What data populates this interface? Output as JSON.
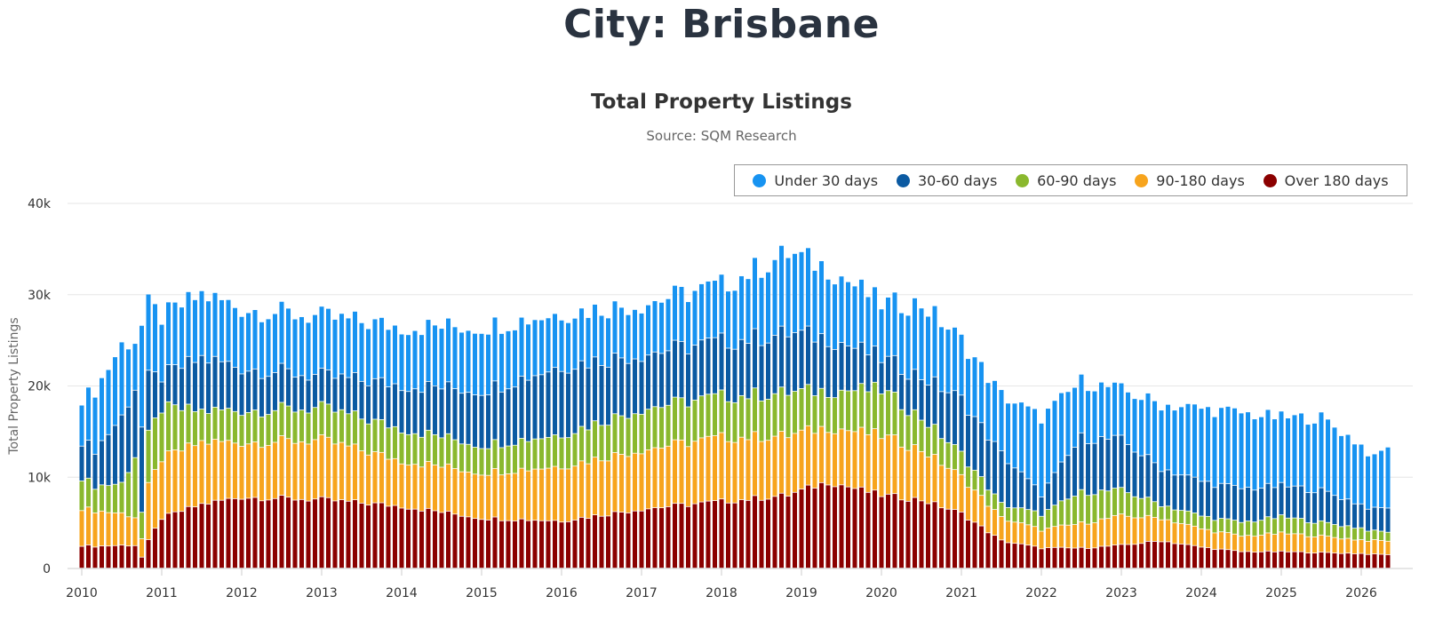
{
  "page": {
    "title": "City: Brisbane"
  },
  "chart_data": {
    "type": "bar",
    "stacked": true,
    "title": "Total Property Listings",
    "subtitle": "Source: SQM Research",
    "ylabel": "Total Property Listings",
    "xlabel": "",
    "ylim": [
      0,
      40000
    ],
    "yticks": [
      {
        "value": 0,
        "label": "0"
      },
      {
        "value": 10000,
        "label": "10k"
      },
      {
        "value": 20000,
        "label": "20k"
      },
      {
        "value": 30000,
        "label": "30k"
      },
      {
        "value": 40000,
        "label": "40k"
      }
    ],
    "xticks": [
      "2010",
      "2011",
      "2012",
      "2013",
      "2014",
      "2015",
      "2016",
      "2017",
      "2018",
      "2019",
      "2020",
      "2021",
      "2022",
      "2023",
      "2024",
      "2025",
      "2026"
    ],
    "x_start": "2010-01",
    "grid": true,
    "legend_position": "top-right",
    "series": [
      {
        "name": "Over 180 days",
        "color": "#8b0000"
      },
      {
        "name": "90-180 days",
        "color": "#f7a41d"
      },
      {
        "name": "60-90 days",
        "color": "#8ab82e"
      },
      {
        "name": "30-60 days",
        "color": "#0b5aa2"
      },
      {
        "name": "Under 30 days",
        "color": "#1793f1"
      }
    ],
    "legend_order": [
      "Under 30 days",
      "30-60 days",
      "60-90 days",
      "90-180 days",
      "Over 180 days"
    ],
    "key_points": [
      {
        "m": 0,
        "total": 18700,
        "s": [
          2500,
          4100,
          3400,
          4000,
          4700
        ]
      },
      {
        "m": 2,
        "total": 19500,
        "s": [
          2400,
          3900,
          2700,
          4000,
          6500
        ]
      },
      {
        "m": 6,
        "total": 24500,
        "s": [
          2500,
          3500,
          3300,
          7300,
          7900
        ]
      },
      {
        "m": 8,
        "total": 25000,
        "s": [
          2500,
          3100,
          6700,
          7500,
          5200
        ]
      },
      {
        "m": 9,
        "total": 26500,
        "s": [
          1200,
          2000,
          2900,
          9300,
          11100
        ]
      },
      {
        "m": 10,
        "total": 28800,
        "s": [
          3000,
          6000,
          5500,
          6300,
          8000
        ]
      },
      {
        "m": 12,
        "total": 27500,
        "s": [
          5500,
          6500,
          5500,
          3500,
          6500
        ]
      },
      {
        "m": 18,
        "total": 30000,
        "s": [
          7000,
          6800,
          3400,
          5800,
          7000
        ]
      },
      {
        "m": 24,
        "total": 28500,
        "s": [
          7800,
          6000,
          3500,
          4700,
          6500
        ]
      },
      {
        "m": 36,
        "total": 27500,
        "s": [
          7500,
          6500,
          3500,
          3500,
          6500
        ]
      },
      {
        "m": 48,
        "total": 26500,
        "s": [
          6800,
          5000,
          3500,
          4800,
          6400
        ]
      },
      {
        "m": 60,
        "total": 26500,
        "s": [
          5500,
          5000,
          3000,
          6000,
          7000
        ]
      },
      {
        "m": 72,
        "total": 28000,
        "s": [
          5200,
          6000,
          3500,
          7500,
          5800
        ]
      },
      {
        "m": 84,
        "total": 29000,
        "s": [
          6500,
          6500,
          4500,
          6000,
          5500
        ]
      },
      {
        "m": 96,
        "total": 31000,
        "s": [
          7300,
          7000,
          4500,
          6000,
          6200
        ]
      },
      {
        "m": 106,
        "total": 34500,
        "s": [
          8000,
          6500,
          4700,
          6500,
          8800
        ]
      },
      {
        "m": 112,
        "total": 33000,
        "s": [
          9500,
          6000,
          4000,
          5800,
          7700
        ]
      },
      {
        "m": 120,
        "total": 29000,
        "s": [
          8000,
          6500,
          5000,
          3500,
          6000
        ]
      },
      {
        "m": 126,
        "total": 29000,
        "s": [
          7500,
          5500,
          3500,
          4500,
          8000
        ]
      },
      {
        "m": 132,
        "total": 25000,
        "s": [
          6000,
          4000,
          2500,
          6000,
          6500
        ]
      },
      {
        "m": 138,
        "total": 19000,
        "s": [
          3000,
          2500,
          1500,
          5500,
          6500
        ]
      },
      {
        "m": 144,
        "total": 16500,
        "s": [
          2200,
          2000,
          1700,
          2200,
          8400
        ]
      },
      {
        "m": 150,
        "total": 20500,
        "s": [
          2200,
          2700,
          3400,
          6000,
          6200
        ]
      },
      {
        "m": 156,
        "total": 19500,
        "s": [
          2500,
          3200,
          2800,
          5500,
          5500
        ]
      },
      {
        "m": 162,
        "total": 18000,
        "s": [
          3000,
          2500,
          1500,
          4000,
          7000
        ]
      },
      {
        "m": 168,
        "total": 17500,
        "s": [
          2300,
          2000,
          1400,
          3800,
          8000
        ]
      },
      {
        "m": 174,
        "total": 17000,
        "s": [
          1800,
          1700,
          1500,
          3700,
          8300
        ]
      },
      {
        "m": 180,
        "total": 16500,
        "s": [
          1800,
          2000,
          1800,
          3400,
          7500
        ]
      },
      {
        "m": 186,
        "total": 16500,
        "s": [
          1700,
          1800,
          1500,
          3500,
          8000
        ]
      },
      {
        "m": 192,
        "total": 13500,
        "s": [
          1600,
          1500,
          1300,
          2600,
          6500
        ]
      },
      {
        "m": 194,
        "total": 12000,
        "s": [
          1500,
          1500,
          1000,
          2400,
          5600
        ]
      },
      {
        "m": 194,
        "total": 12000,
        "s": [
          1500,
          1500,
          1000,
          2400,
          5600
        ]
      },
      {
        "m": 194,
        "total": 12000,
        "s": [
          1500,
          1500,
          1000,
          2400,
          5600
        ]
      },
      {
        "m": 194,
        "total": 12000,
        "s": [
          1500,
          1500,
          1000,
          2400,
          5600
        ]
      },
      {
        "m": 194,
        "total": 12000,
        "s": [
          1500,
          1500,
          1000,
          2400,
          5600
        ]
      },
      {
        "m": 196,
        "total": 13500,
        "s": [
          1500,
          1500,
          1000,
          2700,
          6800
        ]
      }
    ]
  }
}
